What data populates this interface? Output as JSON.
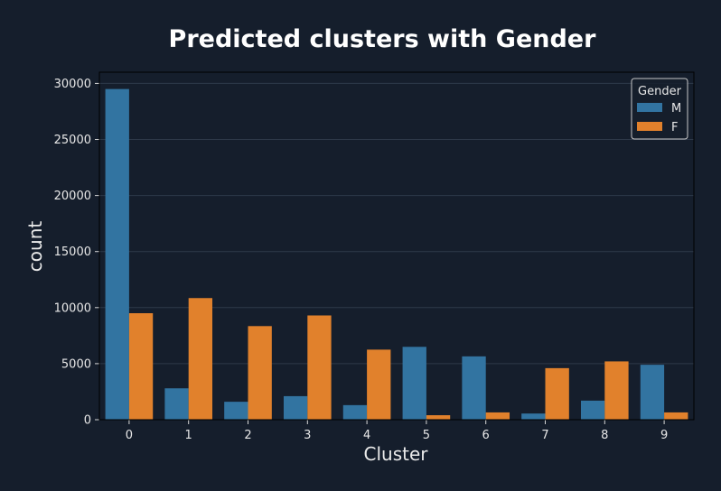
{
  "chart_data": {
    "type": "bar",
    "title": "Predicted clusters with Gender",
    "xlabel": "Cluster",
    "ylabel": "count",
    "categories": [
      "0",
      "1",
      "2",
      "3",
      "4",
      "5",
      "6",
      "7",
      "8",
      "9"
    ],
    "series": [
      {
        "name": "M",
        "color": "#3274a1",
        "values": [
          29500,
          2800,
          1600,
          2100,
          1300,
          6500,
          5650,
          550,
          1700,
          4900
        ]
      },
      {
        "name": "F",
        "color": "#e1812c",
        "values": [
          9500,
          10850,
          8350,
          9300,
          6250,
          400,
          650,
          4600,
          5200,
          650
        ]
      }
    ],
    "ylim": [
      0,
      31000
    ],
    "yticks": [
      0,
      5000,
      10000,
      15000,
      20000,
      25000,
      30000
    ],
    "ytick_labels": [
      "0",
      "5000",
      "10000",
      "15000",
      "20000",
      "25000",
      "30000"
    ],
    "grid": true,
    "legend": {
      "title": "Gender",
      "placement": "top-right"
    },
    "colors": {
      "background": "#151e2c",
      "grid": "#2e3a4a"
    }
  }
}
